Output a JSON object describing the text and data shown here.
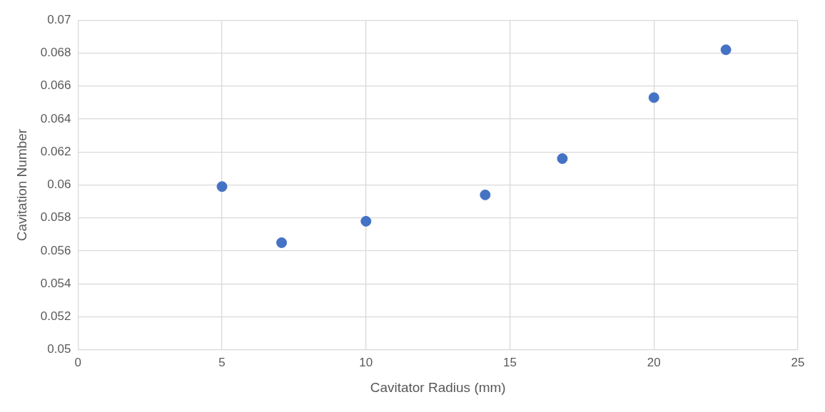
{
  "chart_data": {
    "type": "scatter",
    "xlabel": "Cavitator Radius (mm)",
    "ylabel": "Cavitation Number",
    "x": [
      5,
      7.07,
      10,
      14.14,
      16.82,
      20,
      22.5
    ],
    "series": [
      {
        "color": "#4472c4",
        "values": [
          0.0599,
          0.0565,
          0.0578,
          0.0594,
          0.0616,
          0.0653,
          0.0682
        ]
      }
    ],
    "xlim": [
      0,
      25
    ],
    "xticks": [
      0,
      5,
      10,
      15,
      20,
      25
    ],
    "ylim": [
      0.05,
      0.07
    ],
    "yticks": [
      0.05,
      0.052,
      0.054,
      0.056,
      0.058,
      0.06,
      0.062,
      0.064,
      0.066,
      0.068,
      0.07
    ],
    "grid": true,
    "marker": "circle",
    "legend": false
  }
}
